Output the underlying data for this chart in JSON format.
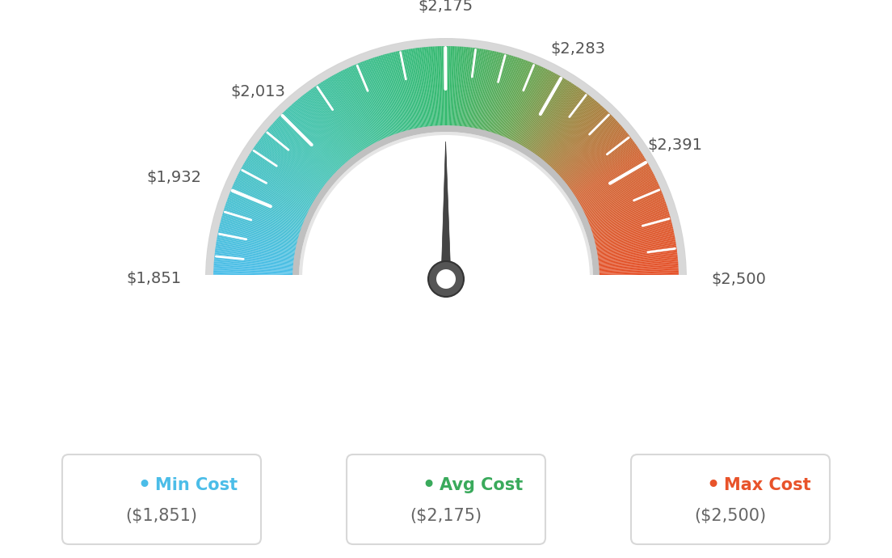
{
  "min_val": 1851,
  "max_val": 2500,
  "avg_val": 2175,
  "needle_value": 2175,
  "tick_labels": [
    "$1,851",
    "$1,932",
    "$2,013",
    "$2,175",
    "$2,283",
    "$2,391",
    "$2,500"
  ],
  "tick_values": [
    1851,
    1932,
    2013,
    2175,
    2283,
    2391,
    2500
  ],
  "legend_labels": [
    "Min Cost",
    "Avg Cost",
    "Max Cost"
  ],
  "legend_values": [
    "($1,851)",
    "($2,175)",
    "($2,500)"
  ],
  "legend_colors": [
    "#4bbde8",
    "#3aaa5c",
    "#e8532a"
  ],
  "bg_color": "#ffffff",
  "color_stops": [
    [
      0.0,
      [
        75,
        190,
        235
      ]
    ],
    [
      0.25,
      [
        65,
        195,
        175
      ]
    ],
    [
      0.5,
      [
        52,
        185,
        110
      ]
    ],
    [
      0.62,
      [
        100,
        165,
        80
      ]
    ],
    [
      0.72,
      [
        160,
        130,
        60
      ]
    ],
    [
      0.82,
      [
        210,
        100,
        50
      ]
    ],
    [
      1.0,
      [
        230,
        80,
        40
      ]
    ]
  ],
  "outer_ring_color": "#d8d8d8",
  "inner_ring_color_dark": "#c8c8c8",
  "inner_ring_color_light": "#e8e8e8",
  "hub_color": "#555555",
  "needle_color": "#444444"
}
